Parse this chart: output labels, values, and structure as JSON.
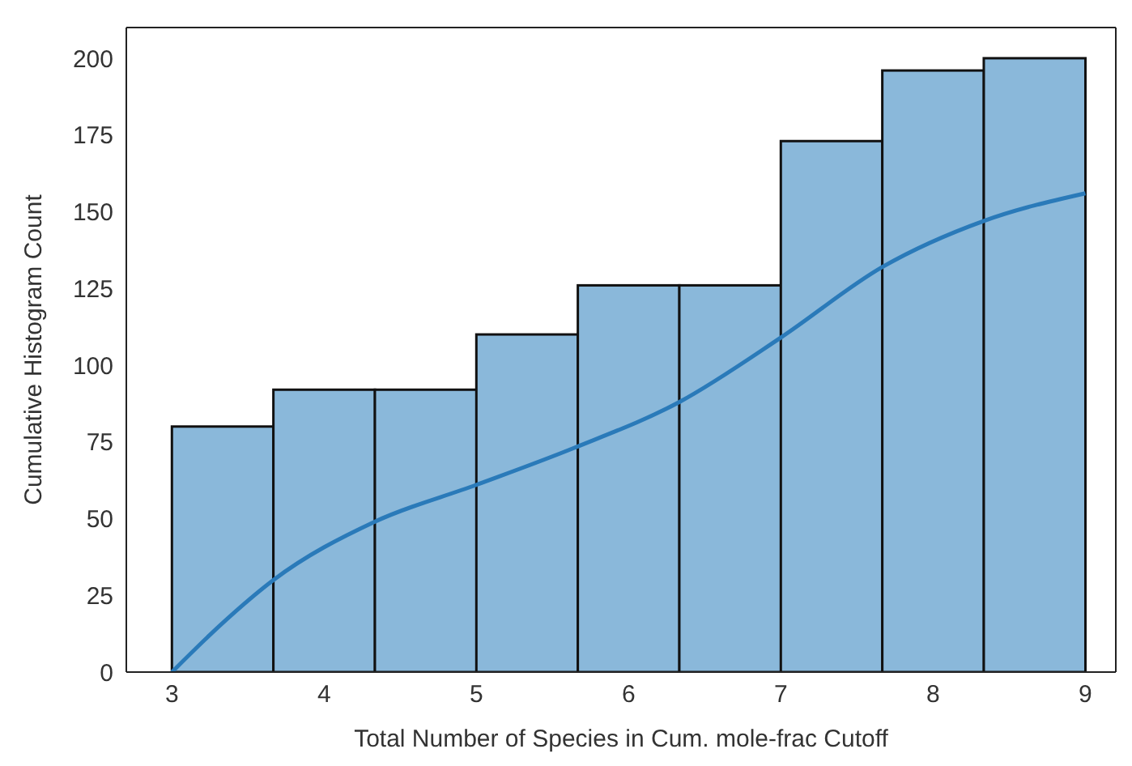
{
  "chart_data": {
    "type": "histogram",
    "xlabel": "Total Number of Species in Cum. mole-frac Cutoff",
    "ylabel": "Cumulative Histogram Count",
    "bins": [
      3,
      3.6667,
      4.3333,
      5,
      5.6667,
      6.3333,
      7,
      7.6667,
      8.3333,
      9
    ],
    "series": [
      {
        "color": "#8ab8da",
        "values": [
          80,
          92,
          92,
          110,
          126,
          126,
          173,
          196,
          200
        ]
      },
      {
        "type": "line",
        "color": "#2a7ab9",
        "x": [
          3,
          3.333,
          3.667,
          4.333,
          5,
          5.64,
          6.333,
          7,
          7.667,
          8.333,
          9
        ],
        "values": [
          0,
          16,
          30,
          49,
          61,
          73,
          88,
          109,
          132,
          147,
          156
        ]
      }
    ],
    "xlim": [
      2.7,
      9.2
    ],
    "xticks": [
      3,
      4,
      5,
      6,
      7,
      8,
      9
    ],
    "ylim": [
      0,
      210
    ],
    "yticks": [
      0,
      25,
      50,
      75,
      100,
      125,
      150,
      175,
      200
    ]
  }
}
